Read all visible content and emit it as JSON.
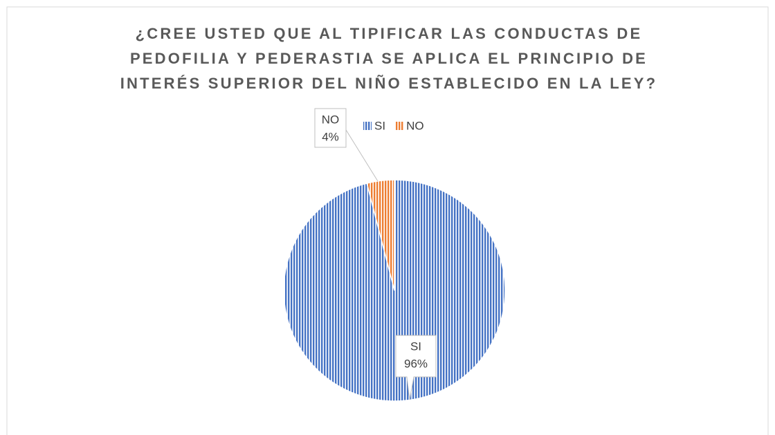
{
  "chart_data": {
    "type": "pie",
    "title": [
      "¿CREE USTED QUE AL TIPIFICAR LAS CONDUCTAS DE",
      "PEDOFILIA Y PEDERASTIA SE APLICA EL PRINCIPIO DE",
      "INTERÉS SUPERIOR DEL NIÑO ESTABLECIDO EN LA LEY?"
    ],
    "categories": [
      "SI",
      "NO"
    ],
    "values": [
      96,
      4
    ],
    "value_labels": [
      "96%",
      "4%"
    ],
    "colors": [
      "#4472c4",
      "#ed7d31"
    ],
    "legend": "top"
  }
}
